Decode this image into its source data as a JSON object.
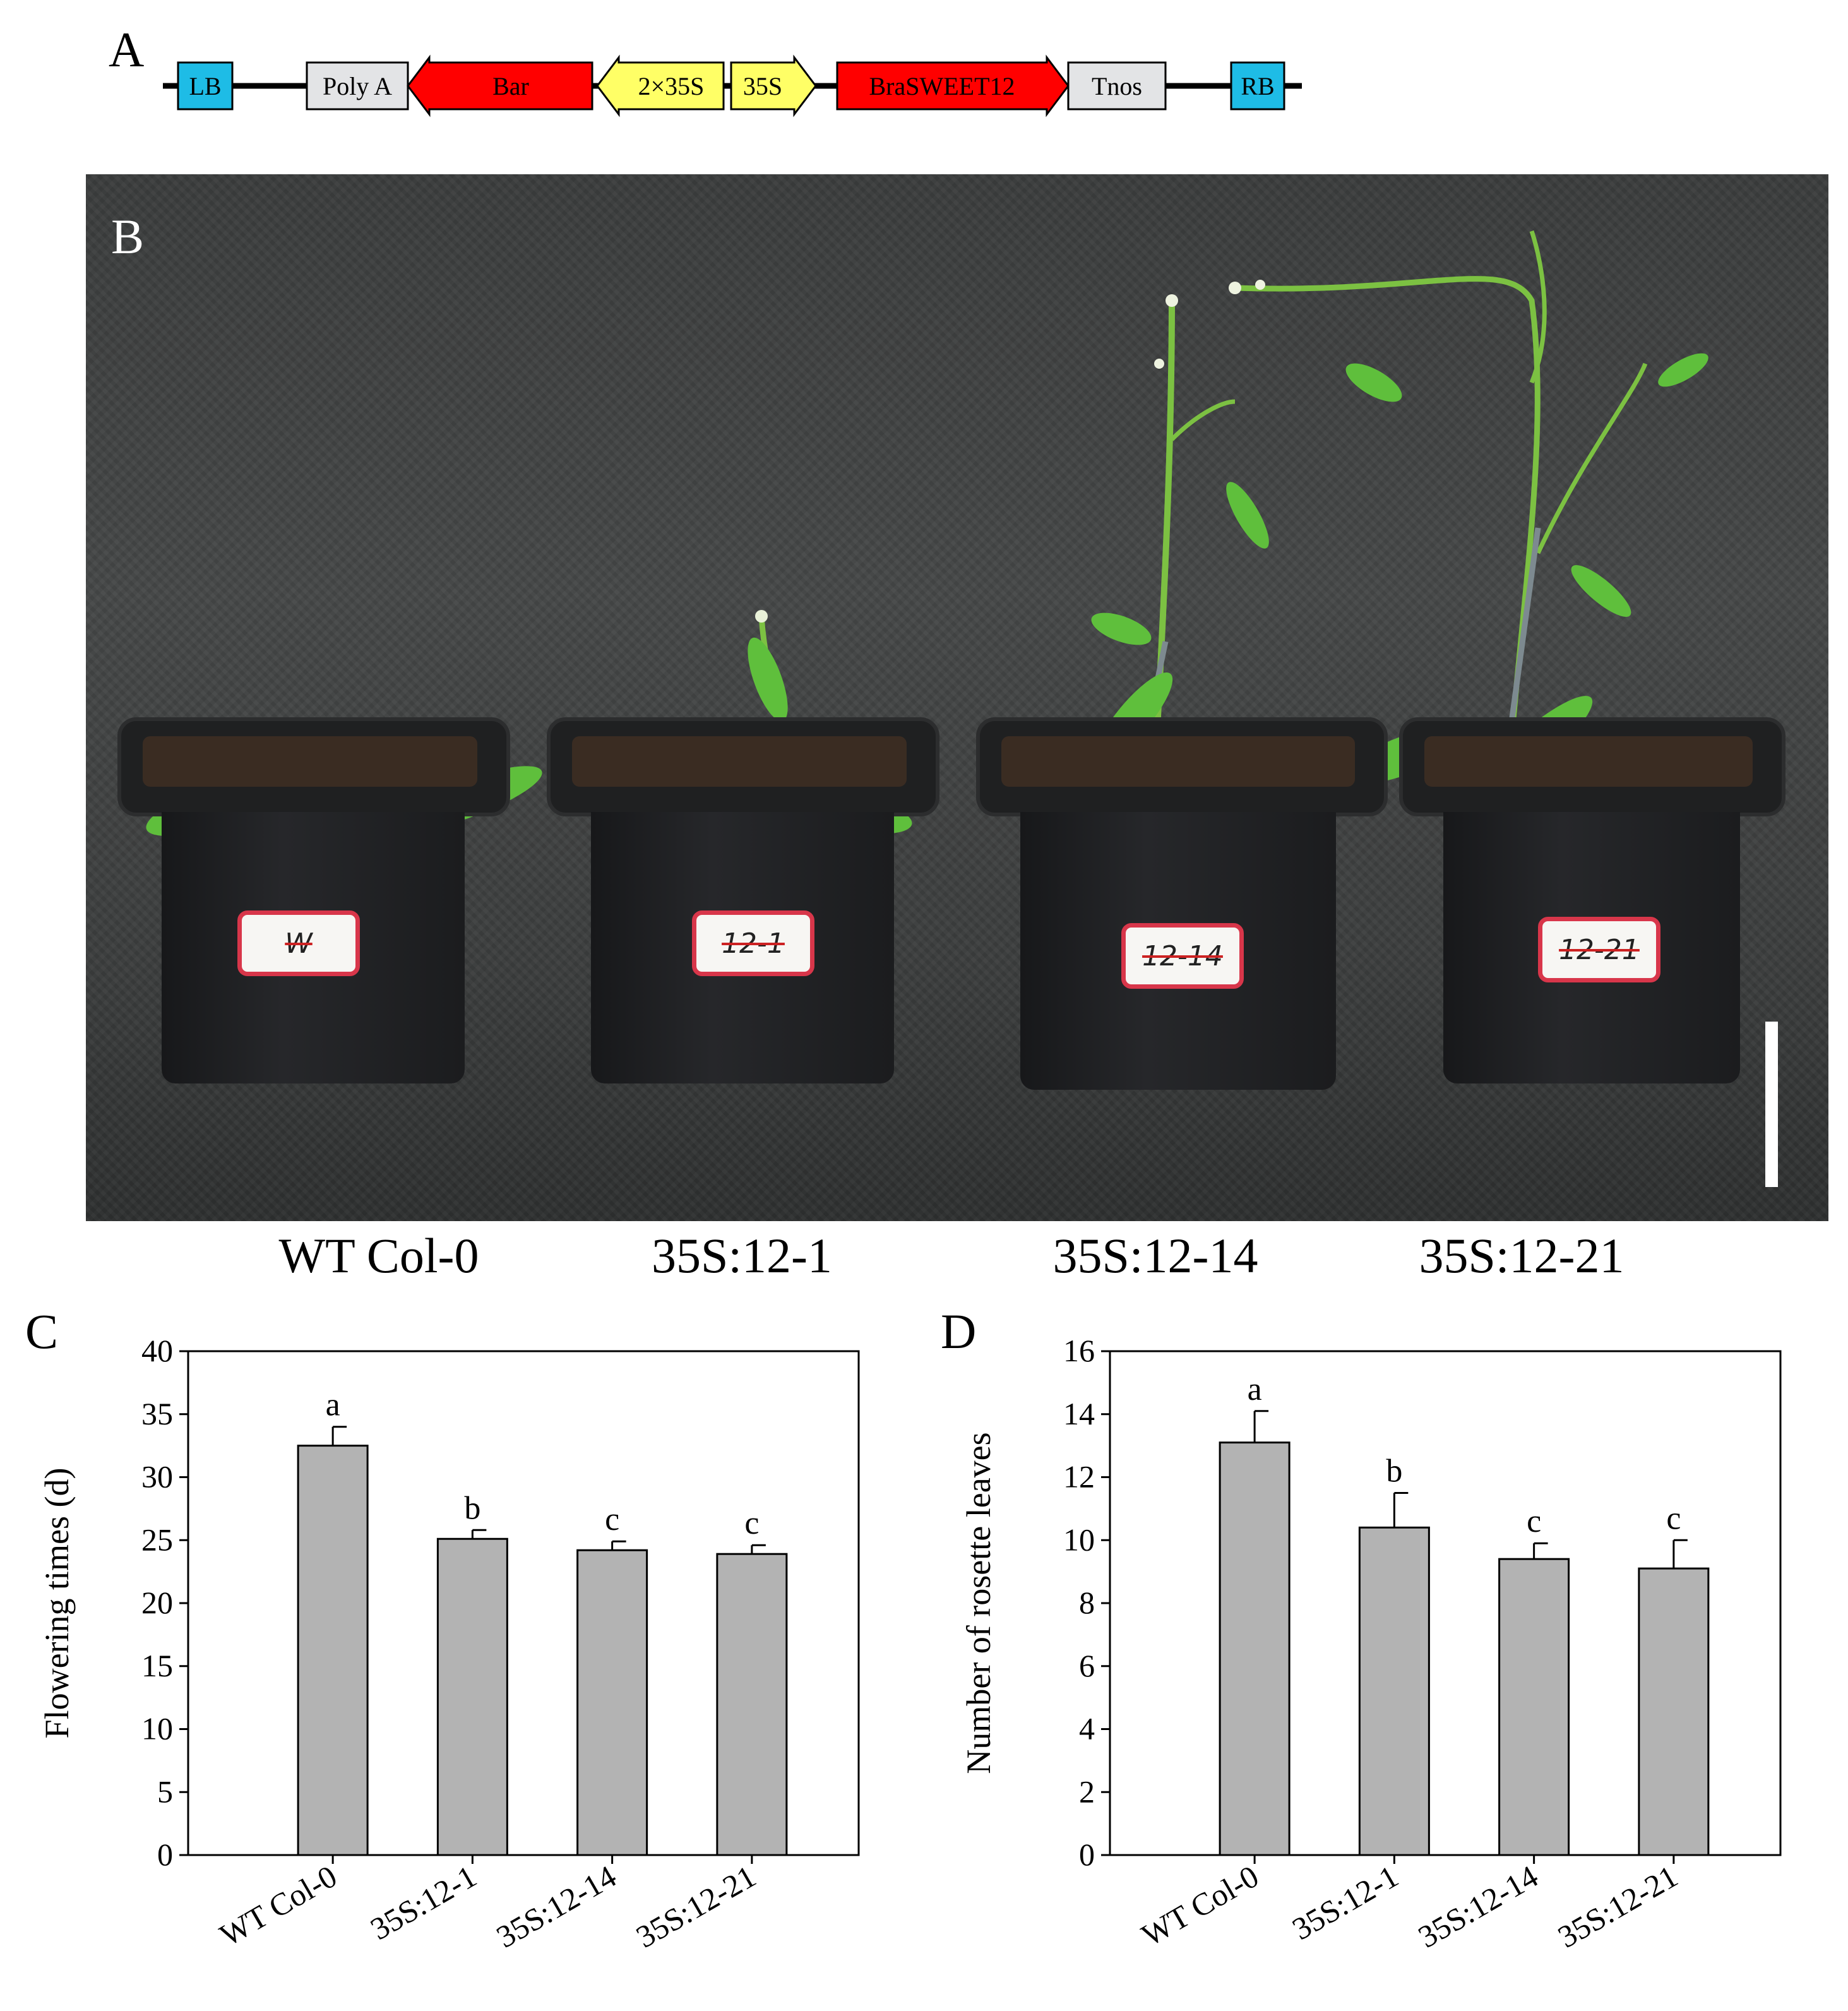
{
  "panels": {
    "a": "A",
    "b": "B",
    "c": "C",
    "d": "D"
  },
  "construct": {
    "elements": [
      {
        "label": "LB",
        "kind": "box",
        "color": "#1ebce6"
      },
      {
        "label": "Poly A",
        "kind": "box",
        "color": "#e3e4e6"
      },
      {
        "label": "Bar",
        "kind": "arrow-left",
        "color": "#ff0000"
      },
      {
        "label": "2×35S",
        "kind": "arrow-left",
        "color": "#ffff66"
      },
      {
        "label": "35S",
        "kind": "arrow-right",
        "color": "#ffff66"
      },
      {
        "label": "BraSWEET12",
        "kind": "arrow-right",
        "color": "#ff0000"
      },
      {
        "label": "Tnos",
        "kind": "box",
        "color": "#e3e4e6"
      },
      {
        "label": "RB",
        "kind": "box",
        "color": "#1ebce6"
      }
    ]
  },
  "photo": {
    "pot_tags": [
      "W",
      "12-1",
      "12-14",
      "12-21"
    ],
    "captions": [
      "WT Col-0",
      "35S:12-1",
      "35S:12-14",
      "35S:12-21"
    ]
  },
  "chart_data": [
    {
      "type": "bar",
      "panel": "C",
      "categories": [
        "WT Col-0",
        "35S:12-1",
        "35S:12-14",
        "35S:12-21"
      ],
      "values": [
        32.5,
        25.1,
        24.2,
        23.9
      ],
      "errors": [
        1.5,
        0.7,
        0.7,
        0.7
      ],
      "letters": [
        "a",
        "b",
        "c",
        "c"
      ],
      "ylabel": "Flowering times (d)",
      "xlabel": "",
      "ylim": [
        0,
        40
      ],
      "yticks": [
        0,
        5,
        10,
        15,
        20,
        25,
        30,
        35,
        40
      ],
      "bar_color": "#b3b3b3"
    },
    {
      "type": "bar",
      "panel": "D",
      "categories": [
        "WT Col-0",
        "35S:12-1",
        "35S:12-14",
        "35S:12-21"
      ],
      "values": [
        13.1,
        10.4,
        9.4,
        9.1
      ],
      "errors": [
        1.0,
        1.1,
        0.5,
        0.9
      ],
      "letters": [
        "a",
        "b",
        "c",
        "c"
      ],
      "ylabel": "Number of rosette leaves",
      "xlabel": "",
      "ylim": [
        0,
        16
      ],
      "yticks": [
        0,
        2,
        4,
        6,
        8,
        10,
        12,
        14,
        16
      ],
      "bar_color": "#b3b3b3"
    }
  ]
}
